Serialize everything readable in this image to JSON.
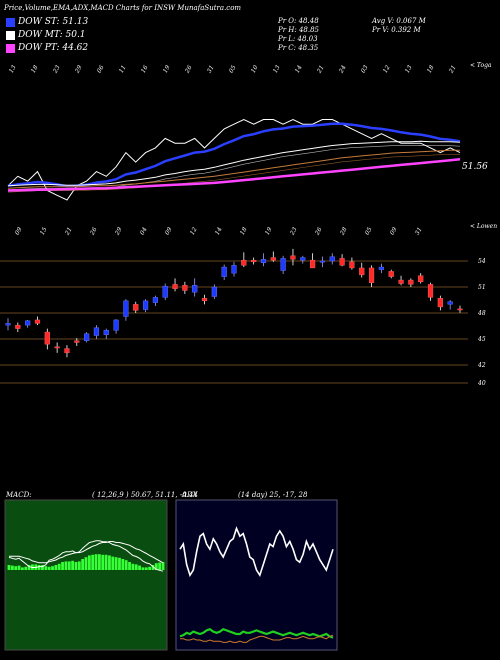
{
  "header": {
    "title": "Price,Volume,EMA,ADX,MACD Charts for INSW MunafaSutra.com"
  },
  "legend": [
    {
      "label": "DOW ST: 51.13",
      "color": "#2a3fff"
    },
    {
      "label": "DOW MT: 50.1",
      "color": "#ffffff"
    },
    {
      "label": "DOW PT: 44.62",
      "color": "#ff44ff"
    }
  ],
  "ohlc": {
    "open": "Pr   O: 48.48",
    "high": "Pr   H: 48.85",
    "low": "Pr   L: 48.03",
    "close": "Pr   C: 48.35",
    "avg_volume": "Avg V: 0.067  M",
    "volume": "Pr   V: 0.392  M"
  },
  "upper_panel": {
    "corner_label": "< Toga",
    "last_value_label": "51.56",
    "date_labels": [
      "13",
      "18",
      "23",
      "29",
      "06",
      "11",
      "16",
      "19",
      "26",
      "31",
      "05",
      "10",
      "13",
      "14",
      "21",
      "24",
      "03",
      "12",
      "13",
      "18",
      "21"
    ]
  },
  "price_panel": {
    "corner_label": "< Lowen",
    "date_labels": [
      "09",
      "15",
      "21",
      "26",
      "29",
      "04",
      "09",
      "12",
      "14",
      "18",
      "19",
      "23",
      "26",
      "28",
      "05",
      "09",
      "31"
    ],
    "price_ticks": [
      "54",
      "51",
      "48",
      "45",
      "42",
      "40"
    ]
  },
  "macd": {
    "label": "MACD:",
    "values": "( 12,26,9 ) 50.67,  51.11,  -0.44"
  },
  "adx": {
    "label": "ADX",
    "values": "(14  day) 25,  -17,  28"
  },
  "chart_data": {
    "type": "candlestick",
    "ticker": "INSW",
    "price_axis_ticks": [
      54,
      51,
      48,
      45,
      42,
      40
    ],
    "candles": [
      {
        "o": 46.6,
        "h": 47.4,
        "l": 46.0,
        "c": 46.8
      },
      {
        "o": 46.6,
        "h": 46.9,
        "l": 45.8,
        "c": 46.2
      },
      {
        "o": 46.6,
        "h": 47.2,
        "l": 46.3,
        "c": 47.1
      },
      {
        "o": 47.2,
        "h": 47.6,
        "l": 46.6,
        "c": 46.8
      },
      {
        "o": 45.8,
        "h": 46.2,
        "l": 43.8,
        "c": 44.4
      },
      {
        "o": 44.1,
        "h": 44.6,
        "l": 43.4,
        "c": 44.0
      },
      {
        "o": 43.9,
        "h": 44.3,
        "l": 42.9,
        "c": 43.4
      },
      {
        "o": 44.8,
        "h": 45.1,
        "l": 44.2,
        "c": 44.6
      },
      {
        "o": 44.8,
        "h": 45.8,
        "l": 44.6,
        "c": 45.6
      },
      {
        "o": 45.4,
        "h": 46.6,
        "l": 45.0,
        "c": 46.3
      },
      {
        "o": 45.5,
        "h": 46.2,
        "l": 45.0,
        "c": 46.0
      },
      {
        "o": 46.0,
        "h": 47.3,
        "l": 45.6,
        "c": 47.2
      },
      {
        "o": 47.6,
        "h": 49.6,
        "l": 47.1,
        "c": 49.4
      },
      {
        "o": 49.0,
        "h": 49.3,
        "l": 48.0,
        "c": 48.3
      },
      {
        "o": 48.4,
        "h": 49.6,
        "l": 48.1,
        "c": 49.4
      },
      {
        "o": 49.2,
        "h": 50.0,
        "l": 48.8,
        "c": 49.8
      },
      {
        "o": 49.8,
        "h": 51.4,
        "l": 49.5,
        "c": 51.1
      },
      {
        "o": 51.3,
        "h": 52.0,
        "l": 50.5,
        "c": 50.8
      },
      {
        "o": 51.2,
        "h": 51.6,
        "l": 50.2,
        "c": 50.6
      },
      {
        "o": 50.4,
        "h": 52.0,
        "l": 49.9,
        "c": 51.2
      },
      {
        "o": 49.7,
        "h": 50.1,
        "l": 49.0,
        "c": 49.4
      },
      {
        "o": 49.9,
        "h": 51.3,
        "l": 49.6,
        "c": 51.0
      },
      {
        "o": 52.2,
        "h": 53.6,
        "l": 51.8,
        "c": 53.3
      },
      {
        "o": 52.6,
        "h": 53.9,
        "l": 52.2,
        "c": 53.5
      },
      {
        "o": 54.1,
        "h": 55.0,
        "l": 53.3,
        "c": 53.5
      },
      {
        "o": 54.1,
        "h": 54.4,
        "l": 53.6,
        "c": 53.9
      },
      {
        "o": 53.8,
        "h": 54.9,
        "l": 53.4,
        "c": 54.2
      },
      {
        "o": 54.4,
        "h": 55.1,
        "l": 53.9,
        "c": 54.1
      },
      {
        "o": 52.9,
        "h": 54.6,
        "l": 52.5,
        "c": 54.3
      },
      {
        "o": 54.6,
        "h": 55.4,
        "l": 53.5,
        "c": 54.2
      },
      {
        "o": 54.1,
        "h": 54.6,
        "l": 53.7,
        "c": 54.4
      },
      {
        "o": 54.1,
        "h": 54.9,
        "l": 53.2,
        "c": 53.2
      },
      {
        "o": 53.9,
        "h": 54.5,
        "l": 53.3,
        "c": 54.0
      },
      {
        "o": 54.0,
        "h": 54.9,
        "l": 53.6,
        "c": 54.5
      },
      {
        "o": 54.3,
        "h": 54.8,
        "l": 53.4,
        "c": 53.5
      },
      {
        "o": 53.9,
        "h": 54.4,
        "l": 53.0,
        "c": 53.2
      },
      {
        "o": 53.2,
        "h": 53.8,
        "l": 52.1,
        "c": 52.4
      },
      {
        "o": 53.2,
        "h": 53.5,
        "l": 51.0,
        "c": 51.5
      },
      {
        "o": 53.0,
        "h": 53.7,
        "l": 52.6,
        "c": 53.3
      },
      {
        "o": 52.8,
        "h": 53.0,
        "l": 52.0,
        "c": 52.2
      },
      {
        "o": 51.8,
        "h": 52.3,
        "l": 51.2,
        "c": 51.4
      },
      {
        "o": 51.8,
        "h": 52.0,
        "l": 51.0,
        "c": 51.3
      },
      {
        "o": 52.3,
        "h": 52.6,
        "l": 51.4,
        "c": 51.6
      },
      {
        "o": 51.3,
        "h": 51.5,
        "l": 49.4,
        "c": 49.8
      },
      {
        "o": 49.7,
        "h": 50.0,
        "l": 48.3,
        "c": 48.7
      },
      {
        "o": 49.0,
        "h": 49.5,
        "l": 48.4,
        "c": 49.3
      },
      {
        "o": 48.48,
        "h": 48.85,
        "l": 48.03,
        "c": 48.35
      }
    ],
    "upper_series": [
      {
        "name": "price",
        "color": "#ffffff",
        "values": [
          36,
          38,
          37,
          39,
          35,
          34,
          33,
          36,
          37,
          39,
          38,
          40,
          43,
          41,
          43,
          44,
          46,
          45,
          45,
          46,
          44,
          46,
          48,
          49,
          50,
          49,
          50,
          50,
          49,
          50,
          49,
          49,
          50,
          50,
          49,
          48,
          47,
          46,
          47,
          46,
          45,
          45,
          45,
          44,
          43,
          44,
          43
        ]
      },
      {
        "name": "ema-short",
        "color": "#2a3fff",
        "values": [
          36,
          36.3,
          36.5,
          36.8,
          36.6,
          36.3,
          35.9,
          36,
          36.2,
          36.7,
          36.9,
          37.4,
          38.4,
          38.8,
          39.5,
          40.2,
          41.2,
          41.8,
          42.4,
          43,
          43.2,
          43.8,
          44.8,
          45.6,
          46.5,
          46.9,
          47.5,
          47.9,
          48.1,
          48.5,
          48.6,
          48.7,
          48.9,
          49.1,
          49.1,
          48.9,
          48.6,
          48.2,
          48.0,
          47.7,
          47.3,
          47.0,
          46.8,
          46.4,
          45.9,
          45.7,
          45.4
        ]
      },
      {
        "name": "ema-mid",
        "color": "#ffffff",
        "values": [
          36,
          36.1,
          36.2,
          36.3,
          36.3,
          36.2,
          36.1,
          36.1,
          36.2,
          36.3,
          36.4,
          36.6,
          37.0,
          37.2,
          37.5,
          37.8,
          38.3,
          38.6,
          39.0,
          39.3,
          39.5,
          39.9,
          40.4,
          40.9,
          41.4,
          41.8,
          42.2,
          42.6,
          43.0,
          43.3,
          43.6,
          43.9,
          44.2,
          44.5,
          44.7,
          44.9,
          45.0,
          45.1,
          45.2,
          45.3,
          45.3,
          45.3,
          45.4,
          45.3,
          45.3,
          45.3,
          45.2
        ]
      },
      {
        "name": "ema-long",
        "color": "#c57a3a",
        "values": [
          35.5,
          35.6,
          35.7,
          35.8,
          35.8,
          35.8,
          35.8,
          35.8,
          35.9,
          36,
          36,
          36.1,
          36.3,
          36.4,
          36.6,
          36.8,
          37,
          37.2,
          37.4,
          37.6,
          37.8,
          38,
          38.3,
          38.6,
          38.9,
          39.2,
          39.5,
          39.8,
          40.1,
          40.4,
          40.7,
          41,
          41.3,
          41.6,
          41.9,
          42.1,
          42.3,
          42.5,
          42.7,
          42.9,
          43.0,
          43.1,
          43.2,
          43.3,
          43.4,
          43.5,
          43.5
        ]
      },
      {
        "name": "ema-longest",
        "color": "#ff44ff",
        "values": [
          35,
          35.05,
          35.1,
          35.15,
          35.2,
          35.25,
          35.3,
          35.35,
          35.4,
          35.45,
          35.5,
          35.6,
          35.7,
          35.8,
          35.9,
          36,
          36.1,
          36.2,
          36.3,
          36.4,
          36.5,
          36.6,
          36.8,
          37,
          37.2,
          37.4,
          37.6,
          37.8,
          38,
          38.2,
          38.4,
          38.6,
          38.8,
          39,
          39.2,
          39.4,
          39.6,
          39.8,
          40,
          40.2,
          40.4,
          40.6,
          40.8,
          41,
          41.2,
          41.4,
          41.6
        ]
      }
    ],
    "macd_series": {
      "macd": [
        0.5,
        0.4,
        0.3,
        0.4,
        0.1,
        -0.2,
        -0.5,
        -0.6,
        -0.6,
        -0.5,
        -0.5,
        -0.3,
        0.2,
        0.3,
        0.5,
        0.7,
        1.0,
        1.1,
        1.1,
        1.2,
        1.0,
        1.1,
        1.5,
        1.8,
        2.1,
        2.2,
        2.3,
        2.3,
        2.2,
        2.2,
        2.1,
        1.9,
        1.8,
        1.7,
        1.5,
        1.3,
        1.0,
        0.7,
        0.6,
        0.4,
        0.1,
        -0.1,
        -0.2,
        -0.5,
        -0.8,
        -0.9,
        -1.0
      ],
      "signal": [
        0.4,
        0.4,
        0.4,
        0.4,
        0.3,
        0.2,
        0.1,
        -0.1,
        -0.2,
        -0.3,
        -0.3,
        -0.3,
        -0.2,
        -0.1,
        0.0,
        0.2,
        0.3,
        0.5,
        0.6,
        0.7,
        0.8,
        0.8,
        0.9,
        1.1,
        1.3,
        1.5,
        1.6,
        1.8,
        1.9,
        1.9,
        2.0,
        2.0,
        1.9,
        1.9,
        1.8,
        1.7,
        1.6,
        1.4,
        1.2,
        1.1,
        0.9,
        0.7,
        0.5,
        0.3,
        0.1,
        -0.1,
        -0.3
      ]
    },
    "adx_series": {
      "adx": [
        28,
        30,
        22,
        18,
        20,
        27,
        33,
        34,
        30,
        28,
        32,
        30,
        27,
        25,
        28,
        31,
        32,
        36,
        33,
        34,
        30,
        25,
        24,
        20,
        18,
        22,
        26,
        30,
        29,
        33,
        35,
        33,
        29,
        31,
        28,
        24,
        23,
        26,
        31,
        28,
        30,
        27,
        24,
        22,
        20,
        24,
        28
      ],
      "plus_di": [
        8,
        9,
        11,
        10,
        12,
        11,
        10,
        11,
        13,
        14,
        12,
        11,
        12,
        14,
        13,
        12,
        11,
        10,
        10,
        12,
        11,
        11,
        12,
        13,
        12,
        11,
        10,
        11,
        12,
        11,
        10,
        9,
        10,
        11,
        10,
        9,
        10,
        11,
        10,
        9,
        10,
        9,
        8,
        9,
        10,
        8,
        7
      ],
      "minus_di": [
        6,
        6,
        5,
        5,
        6,
        5,
        5,
        4,
        4,
        5,
        4,
        4,
        4,
        3,
        3,
        4,
        3,
        3,
        4,
        3,
        3,
        5,
        6,
        7,
        8,
        8,
        7,
        6,
        5,
        5,
        5,
        6,
        7,
        7,
        6,
        6,
        7,
        8,
        7,
        6,
        6,
        7,
        8,
        7,
        6,
        8,
        9
      ]
    }
  }
}
